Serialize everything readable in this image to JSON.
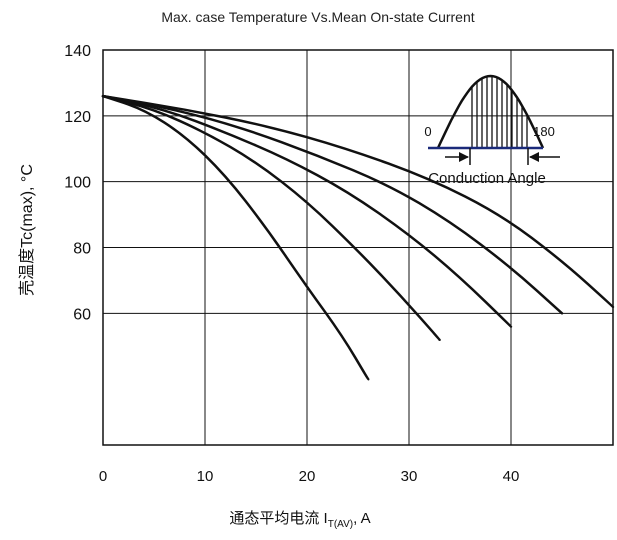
{
  "chart_data": {
    "type": "line",
    "title": "Max. case Temperature Vs.Mean On-state Current",
    "ylabel": "壳温度Tc(max), °C",
    "xlabel": "通态平均电流 I",
    "xlabel_sub": "T(AV)",
    "xlabel_unit": ", A",
    "xlim": [
      0,
      50
    ],
    "ylim": [
      20,
      140
    ],
    "xticks": [
      0,
      10,
      20,
      30,
      40
    ],
    "yticks": [
      60,
      80,
      100,
      120,
      140
    ],
    "grid": true,
    "series": [
      {
        "x": [
          0,
          4,
          8,
          12,
          16,
          20,
          23.5,
          26
        ],
        "y": [
          126,
          122,
          114,
          102,
          86,
          68,
          53,
          40
        ]
      },
      {
        "x": [
          0,
          5,
          10,
          15,
          20,
          25,
          29,
          33
        ],
        "y": [
          126,
          122,
          115,
          106,
          94,
          79,
          66,
          52
        ]
      },
      {
        "x": [
          0,
          6,
          12,
          18,
          24,
          30,
          35,
          40
        ],
        "y": [
          126,
          122,
          115,
          107,
          97,
          84,
          71,
          56
        ]
      },
      {
        "x": [
          0,
          7,
          14,
          21,
          28,
          34,
          40,
          45
        ],
        "y": [
          126,
          122,
          116,
          108,
          99,
          88,
          74,
          60
        ]
      },
      {
        "x": [
          0,
          8,
          16,
          24,
          32,
          39,
          45,
          50
        ],
        "y": [
          126,
          122,
          117,
          110,
          101,
          90,
          76,
          62
        ]
      }
    ],
    "inset": {
      "label_start": "0",
      "label_end": "180",
      "caption": "Conduction Angle"
    }
  }
}
